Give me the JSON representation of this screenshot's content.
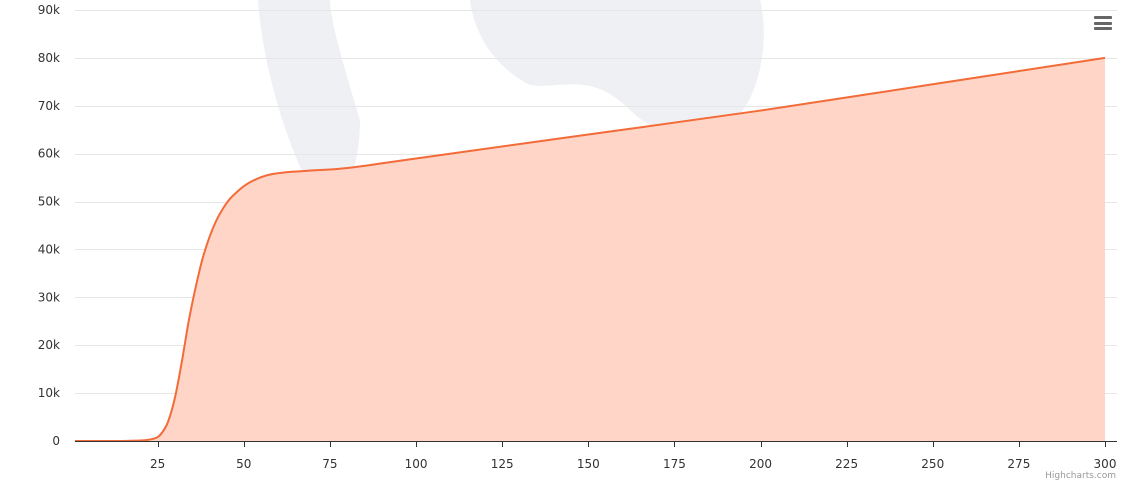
{
  "colors": {
    "series_line": "#f26b38",
    "series_fill": "#ffd3c4",
    "grid": "#e6e6e6",
    "axis_line": "#333333",
    "tick_label": "#333333",
    "map_watermark": "#eef0f3"
  },
  "menu": {
    "icon": "hamburger-menu-icon"
  },
  "credits": {
    "label": "Highcharts.com"
  },
  "chart_data": {
    "type": "area",
    "title": "",
    "xlabel": "",
    "ylabel": "",
    "xlim": [
      1,
      300
    ],
    "ylim": [
      0,
      90000
    ],
    "grid": true,
    "legend": "none",
    "x_ticks": [
      25,
      50,
      75,
      100,
      125,
      150,
      175,
      200,
      225,
      250,
      275,
      300
    ],
    "x_tick_labels": [
      "25",
      "50",
      "75",
      "100",
      "125",
      "150",
      "175",
      "200",
      "225",
      "250",
      "275",
      "300"
    ],
    "y_ticks": [
      0,
      10000,
      20000,
      30000,
      40000,
      50000,
      60000,
      70000,
      80000,
      90000
    ],
    "y_tick_labels": [
      "0",
      "10k",
      "20k",
      "30k",
      "40k",
      "50k",
      "60k",
      "70k",
      "80k",
      "90k"
    ],
    "series": [
      {
        "x": [
          1,
          10,
          20,
          24,
          26,
          28,
          30,
          32,
          34,
          36,
          38,
          40,
          42,
          44,
          46,
          48,
          50,
          52,
          55,
          58,
          62,
          66,
          70,
          80,
          100,
          150,
          200,
          250,
          300
        ],
        "values": [
          0,
          0,
          100,
          500,
          1500,
          4000,
          9000,
          16500,
          25000,
          32000,
          38000,
          42500,
          46000,
          48600,
          50600,
          52000,
          53200,
          54100,
          55100,
          55700,
          56100,
          56300,
          56500,
          57000,
          59000,
          64000,
          69000,
          74500,
          80000
        ]
      }
    ]
  }
}
